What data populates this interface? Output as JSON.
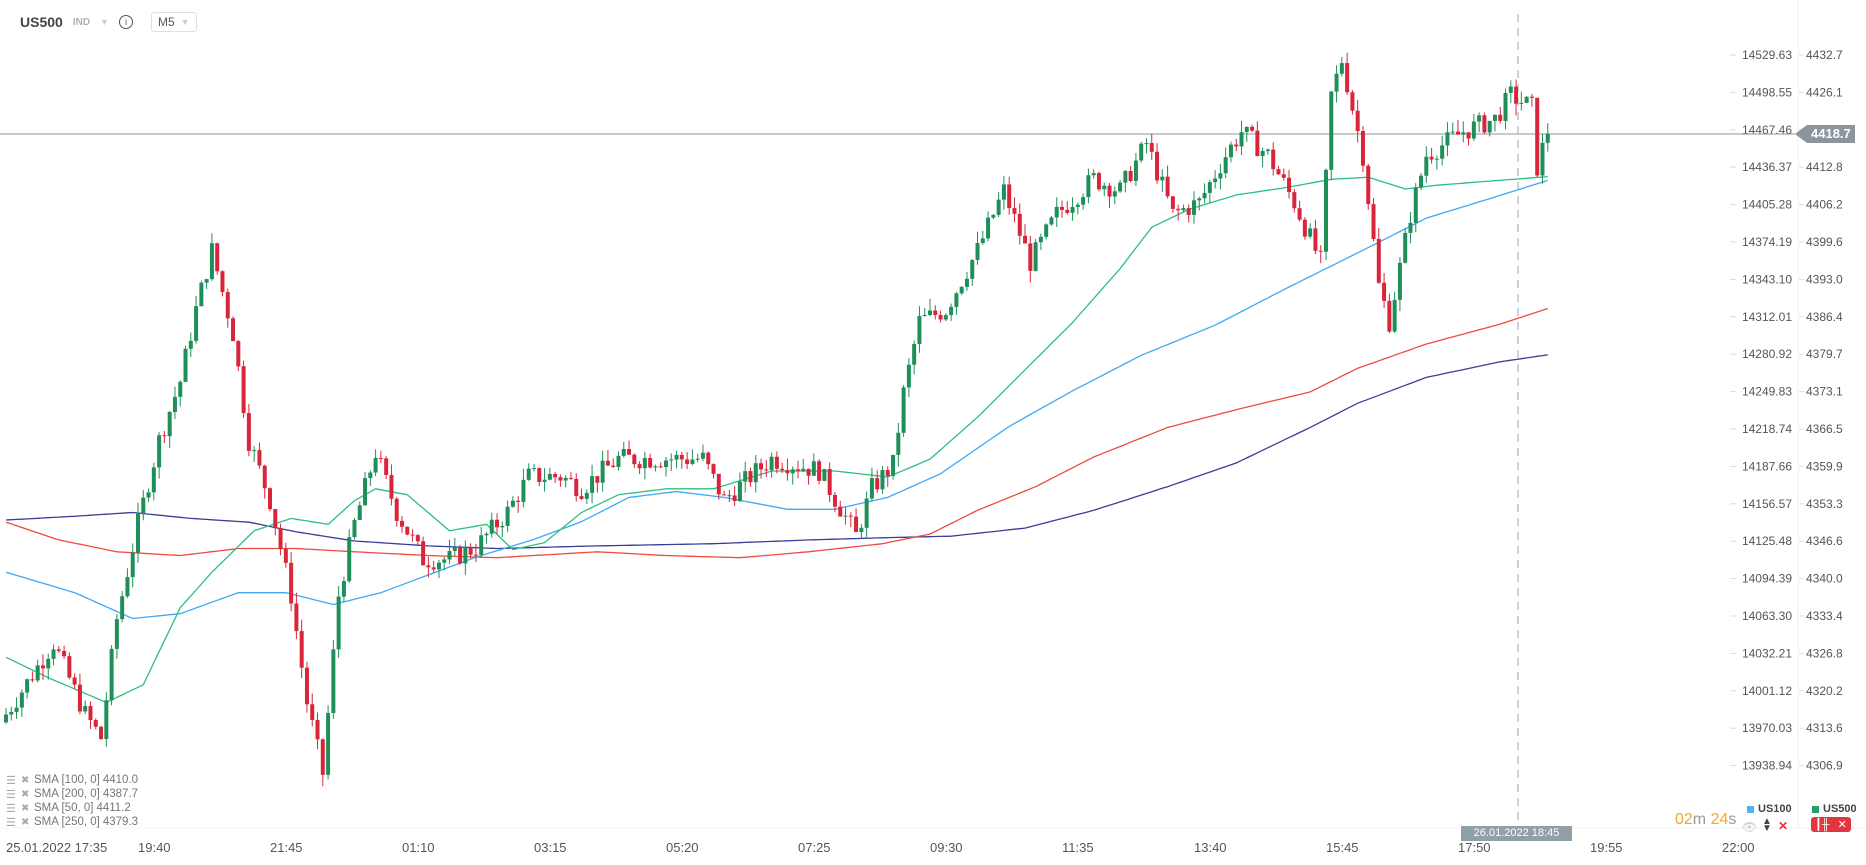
{
  "header": {
    "symbol": "US500",
    "type": "IND",
    "info": "i",
    "timeframe": "M5"
  },
  "current_price": "4418.7",
  "crosshair_time": "26.01.2022 18:45",
  "timer": {
    "minutes": "02",
    "m": "m",
    "seconds": "24",
    "s": "s"
  },
  "series_legend": [
    {
      "name": "US100",
      "color": "#4fb3f0"
    },
    {
      "name": "US500",
      "color": "#26a065"
    }
  ],
  "indicators": [
    {
      "label": "SMA  [100,  0]",
      "value": "4410.0",
      "color": "#3fa9f5"
    },
    {
      "label": "SMA  [200,  0]",
      "value": "4387.7",
      "color": "#ef4b3e"
    },
    {
      "label": "SMA  [50,  0]",
      "value": "4411.2",
      "color": "#2cbf83"
    },
    {
      "label": "SMA  [250,  0]",
      "value": "4379.3",
      "color": "#3a3d96"
    }
  ],
  "chart_data": {
    "type": "candlestick",
    "title": "US500 M5",
    "x_unit": "5-minute candle index from 25.01.2022 17:35",
    "x_ticks": [
      {
        "i": 0,
        "label": "25.01.2022  17:35"
      },
      {
        "i": 25,
        "label": "19:40"
      },
      {
        "i": 50,
        "label": "21:45"
      },
      {
        "i": 75,
        "label": "01:10"
      },
      {
        "i": 100,
        "label": "03:15"
      },
      {
        "i": 125,
        "label": "05:20"
      },
      {
        "i": 150,
        "label": "07:25"
      },
      {
        "i": 175,
        "label": "09:30"
      },
      {
        "i": 200,
        "label": "11:35"
      },
      {
        "i": 225,
        "label": "13:40"
      },
      {
        "i": 250,
        "label": "15:45"
      },
      {
        "i": 275,
        "label": "17:50"
      },
      {
        "i": 300,
        "label": "19:55"
      },
      {
        "i": 325,
        "label": "22:00"
      }
    ],
    "y_ticks_us100": [
      "14529.63",
      "14498.55",
      "14467.46",
      "14436.37",
      "14405.28",
      "14374.19",
      "14343.10",
      "14312.01",
      "14280.92",
      "14249.83",
      "14218.74",
      "14187.66",
      "14156.57",
      "14125.48",
      "14094.39",
      "14063.30",
      "14032.21",
      "14001.12",
      "13970.03",
      "13938.94"
    ],
    "y_ticks_us500": [
      "4432.7",
      "4426.1",
      "",
      "4412.8",
      "4406.2",
      "4399.6",
      "4393.0",
      "4386.4",
      "4379.7",
      "4373.1",
      "4366.5",
      "4359.9",
      "4353.3",
      "4346.6",
      "4340.0",
      "4333.4",
      "4326.8",
      "4320.2",
      "4313.6",
      "4306.9"
    ],
    "up_color": "#1f8f5a",
    "down_color": "#d9253a",
    "price_path": [
      [
        0,
        4310.2
      ],
      [
        3,
        4314.6
      ],
      [
        9,
        4323.5
      ],
      [
        15,
        4310.2
      ],
      [
        18,
        4305.8
      ],
      [
        21,
        4327.9
      ],
      [
        25,
        4345.6
      ],
      [
        29,
        4361.1
      ],
      [
        33,
        4372.1
      ],
      [
        36,
        4385.4
      ],
      [
        39,
        4396.4
      ],
      [
        43,
        4381
      ],
      [
        46,
        4361.1
      ],
      [
        50,
        4350
      ],
      [
        54,
        4332.3
      ],
      [
        57,
        4312.4
      ],
      [
        60,
        4299.2
      ],
      [
        63,
        4332.3
      ],
      [
        66,
        4345.6
      ],
      [
        70,
        4358.9
      ],
      [
        74,
        4347.8
      ],
      [
        79,
        4339
      ],
      [
        84,
        4339
      ],
      [
        89,
        4341.2
      ],
      [
        95,
        4347.8
      ],
      [
        99,
        4354.4
      ],
      [
        105,
        4354.4
      ],
      [
        109,
        4352.2
      ],
      [
        116,
        4357.7
      ],
      [
        132,
        4357.7
      ],
      [
        136,
        4350
      ],
      [
        141,
        4354.4
      ],
      [
        145,
        4357.7
      ],
      [
        154,
        4355.5
      ],
      [
        161,
        4343.4
      ],
      [
        164,
        4352.2
      ],
      [
        168,
        4356.6
      ],
      [
        170,
        4369.9
      ],
      [
        173,
        4383.2
      ],
      [
        178,
        4385.4
      ],
      [
        184,
        4396.4
      ],
      [
        189,
        4407.5
      ],
      [
        194,
        4394.2
      ],
      [
        199,
        4403.1
      ],
      [
        206,
        4409.7
      ],
      [
        211,
        4407.5
      ],
      [
        216,
        4416.3
      ],
      [
        221,
        4403.1
      ],
      [
        226,
        4405.3
      ],
      [
        231,
        4414.1
      ],
      [
        234,
        4418.5
      ],
      [
        239,
        4414.1
      ],
      [
        244,
        4405.3
      ],
      [
        249,
        4394.2
      ],
      [
        251,
        4425.2
      ],
      [
        253,
        4431.8
      ],
      [
        257,
        4414.1
      ],
      [
        260,
        4389.8
      ],
      [
        262,
        4383.2
      ],
      [
        266,
        4403.1
      ],
      [
        269,
        4414.1
      ],
      [
        276,
        4418.5
      ],
      [
        282,
        4420.8
      ],
      [
        285,
        4425.2
      ],
      [
        289,
        4423
      ],
      [
        290,
        4411.9
      ],
      [
        292,
        4418.7
      ]
    ],
    "sma": [
      {
        "name": "SMA 250",
        "color": "#3a3d96",
        "points": [
          [
            0,
            4346.3
          ],
          [
            13,
            4347
          ],
          [
            24,
            4347.7
          ],
          [
            35,
            4346.6
          ],
          [
            46,
            4345.9
          ],
          [
            55,
            4344.1
          ],
          [
            66,
            4342.4
          ],
          [
            80,
            4341.5
          ],
          [
            93,
            4341
          ],
          [
            112,
            4341.5
          ],
          [
            134,
            4341.9
          ],
          [
            152,
            4342.6
          ],
          [
            166,
            4343
          ],
          [
            179,
            4343.3
          ],
          [
            193,
            4344.8
          ],
          [
            206,
            4348.1
          ],
          [
            220,
            4352.5
          ],
          [
            233,
            4356.9
          ],
          [
            247,
            4363.5
          ],
          [
            256,
            4368
          ],
          [
            269,
            4372.8
          ],
          [
            283,
            4375.7
          ],
          [
            292,
            4377
          ]
        ]
      },
      {
        "name": "SMA 200",
        "color": "#ef4b3e",
        "points": [
          [
            0,
            4345.9
          ],
          [
            10,
            4342.6
          ],
          [
            21,
            4340.4
          ],
          [
            33,
            4339.7
          ],
          [
            44,
            4341
          ],
          [
            55,
            4341
          ],
          [
            66,
            4340.4
          ],
          [
            80,
            4339.7
          ],
          [
            93,
            4339.3
          ],
          [
            112,
            4340.4
          ],
          [
            125,
            4339.7
          ],
          [
            139,
            4339.3
          ],
          [
            152,
            4340.4
          ],
          [
            166,
            4341.9
          ],
          [
            175,
            4343.7
          ],
          [
            184,
            4348.1
          ],
          [
            195,
            4352.5
          ],
          [
            206,
            4358
          ],
          [
            220,
            4363.5
          ],
          [
            233,
            4366.8
          ],
          [
            247,
            4370.1
          ],
          [
            256,
            4374.5
          ],
          [
            269,
            4379
          ],
          [
            283,
            4382.7
          ],
          [
            292,
            4385.6
          ]
        ]
      },
      {
        "name": "SMA 100",
        "color": "#3fa9f5",
        "points": [
          [
            0,
            4336.6
          ],
          [
            13,
            4332.8
          ],
          [
            24,
            4328
          ],
          [
            33,
            4328.9
          ],
          [
            44,
            4332.8
          ],
          [
            53,
            4332.8
          ],
          [
            62,
            4330.6
          ],
          [
            71,
            4332.8
          ],
          [
            80,
            4336.1
          ],
          [
            89,
            4339.4
          ],
          [
            100,
            4342.7
          ],
          [
            109,
            4346
          ],
          [
            118,
            4350.5
          ],
          [
            127,
            4351.6
          ],
          [
            136,
            4350.5
          ],
          [
            148,
            4348.3
          ],
          [
            157,
            4348.3
          ],
          [
            167,
            4350.5
          ],
          [
            177,
            4354.9
          ],
          [
            190,
            4363.7
          ],
          [
            202,
            4370.3
          ],
          [
            215,
            4376.9
          ],
          [
            229,
            4382.5
          ],
          [
            242,
            4389.1
          ],
          [
            251,
            4393.5
          ],
          [
            260,
            4397.9
          ],
          [
            269,
            4402.4
          ],
          [
            280,
            4405.7
          ],
          [
            292,
            4409.4
          ]
        ]
      },
      {
        "name": "SMA 50",
        "color": "#2cbf83",
        "points": [
          [
            0,
            4320.8
          ],
          [
            8,
            4317
          ],
          [
            19,
            4312.4
          ],
          [
            26,
            4315.7
          ],
          [
            33,
            4330
          ],
          [
            39,
            4336.6
          ],
          [
            47,
            4344.3
          ],
          [
            54,
            4346.6
          ],
          [
            61,
            4345.5
          ],
          [
            66,
            4349.9
          ],
          [
            70,
            4352.1
          ],
          [
            76,
            4351
          ],
          [
            84,
            4344.3
          ],
          [
            91,
            4345.5
          ],
          [
            96,
            4340.8
          ],
          [
            102,
            4342.1
          ],
          [
            109,
            4347.7
          ],
          [
            116,
            4351
          ],
          [
            125,
            4352.1
          ],
          [
            134,
            4352.1
          ],
          [
            145,
            4355.4
          ],
          [
            157,
            4355.4
          ],
          [
            167,
            4354.3
          ],
          [
            175,
            4357.6
          ],
          [
            184,
            4365.4
          ],
          [
            193,
            4374.2
          ],
          [
            202,
            4383
          ],
          [
            211,
            4393
          ],
          [
            217,
            4400.7
          ],
          [
            224,
            4404
          ],
          [
            233,
            4406.7
          ],
          [
            242,
            4408
          ],
          [
            251,
            4409.6
          ],
          [
            258,
            4410
          ],
          [
            265,
            4407.8
          ],
          [
            271,
            4408.5
          ],
          [
            280,
            4409.2
          ],
          [
            292,
            4410.1
          ]
        ]
      }
    ]
  }
}
